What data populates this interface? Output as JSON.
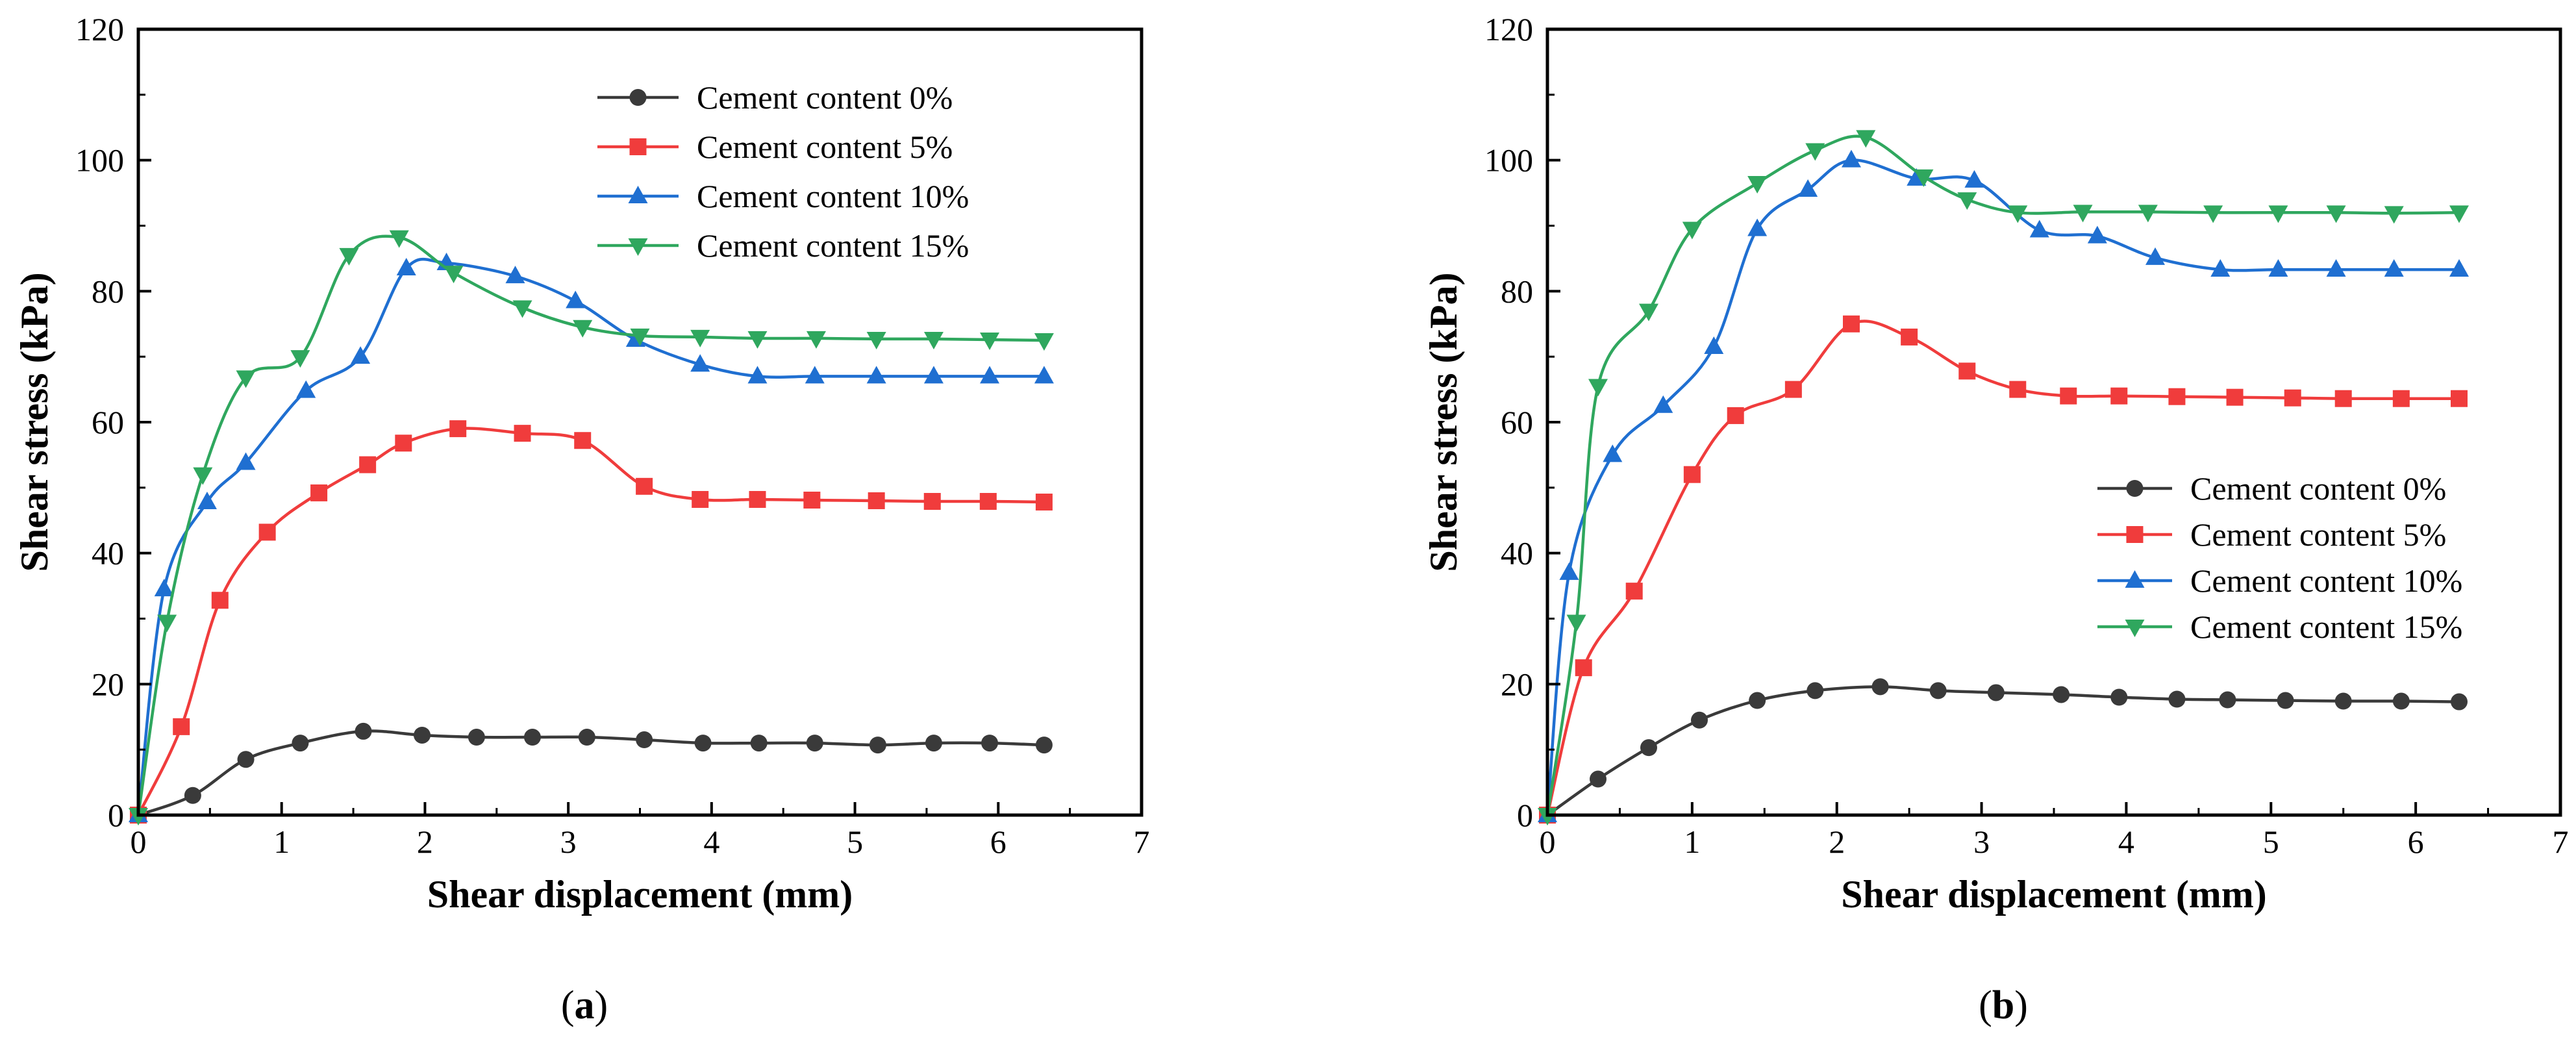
{
  "figure": {
    "panels": [
      "a",
      "b"
    ]
  },
  "chart_data": [
    {
      "type": "line",
      "panel_label": "a",
      "panel_label_open": "(",
      "panel_label_close": ")",
      "xlabel": "Shear displacement (mm)",
      "ylabel": "Shear stress (kPa)",
      "xlim": [
        0,
        7
      ],
      "ylim": [
        0,
        120
      ],
      "xticks": [
        0,
        1,
        2,
        3,
        4,
        5,
        6,
        7
      ],
      "yticks": [
        0,
        20,
        40,
        60,
        80,
        100,
        120
      ],
      "legend_position": "top-right",
      "series": [
        {
          "name": "Cement content 0%",
          "color": "#3a3a3a",
          "marker": "circle",
          "x": [
            0,
            0.38,
            0.75,
            1.13,
            1.57,
            1.98,
            2.36,
            2.75,
            3.13,
            3.53,
            3.94,
            4.33,
            4.72,
            5.16,
            5.55,
            5.94,
            6.32
          ],
          "y": [
            0,
            3,
            8.5,
            11,
            12.8,
            12.2,
            11.9,
            11.9,
            11.9,
            11.5,
            11,
            11,
            11,
            10.7,
            11,
            11,
            10.7
          ]
        },
        {
          "name": "Cement content 5%",
          "color": "#f03c3c",
          "marker": "square",
          "x": [
            0,
            0.3,
            0.57,
            0.9,
            1.26,
            1.6,
            1.85,
            2.23,
            2.68,
            3.1,
            3.53,
            3.92,
            4.32,
            4.7,
            5.15,
            5.54,
            5.93,
            6.32
          ],
          "y": [
            0,
            13.5,
            32.8,
            43.2,
            49.2,
            53.5,
            56.8,
            59,
            58.3,
            57.2,
            50.2,
            48.2,
            48.2,
            48.1,
            48,
            47.9,
            47.9,
            47.8
          ]
        },
        {
          "name": "Cement content 10%",
          "color": "#1f6fd1",
          "marker": "triangle-up",
          "x": [
            0,
            0.18,
            0.48,
            0.75,
            1.17,
            1.55,
            1.87,
            2.15,
            2.63,
            3.05,
            3.47,
            3.92,
            4.32,
            4.72,
            5.15,
            5.55,
            5.94,
            6.32
          ],
          "y": [
            0,
            34.5,
            47.8,
            53.8,
            64.8,
            70,
            83.5,
            84.3,
            82.3,
            78.5,
            72.6,
            68.8,
            67,
            67,
            67,
            67,
            67,
            67
          ]
        },
        {
          "name": "Cement content 15%",
          "color": "#2fa75e",
          "marker": "triangle-down",
          "x": [
            0,
            0.2,
            0.45,
            0.75,
            1.13,
            1.47,
            1.82,
            2.2,
            2.68,
            3.1,
            3.5,
            3.92,
            4.32,
            4.73,
            5.15,
            5.55,
            5.94,
            6.32
          ],
          "y": [
            0,
            29.5,
            52,
            66.8,
            69.9,
            85.5,
            88.2,
            82.8,
            77.5,
            74.5,
            73.2,
            73,
            72.8,
            72.8,
            72.7,
            72.7,
            72.6,
            72.5
          ]
        }
      ]
    },
    {
      "type": "line",
      "panel_label": "b",
      "panel_label_open": "(",
      "panel_label_close": ")",
      "xlabel": "Shear displacement (mm)",
      "ylabel": "Shear stress (kPa)",
      "xlim": [
        0,
        7
      ],
      "ylim": [
        0,
        120
      ],
      "xticks": [
        0,
        1,
        2,
        3,
        4,
        5,
        6,
        7
      ],
      "yticks": [
        0,
        20,
        40,
        60,
        80,
        100,
        120
      ],
      "legend_position": "bottom-right",
      "series": [
        {
          "name": "Cement content 0%",
          "color": "#3a3a3a",
          "marker": "circle",
          "x": [
            0,
            0.35,
            0.7,
            1.05,
            1.45,
            1.85,
            2.3,
            2.7,
            3.1,
            3.55,
            3.95,
            4.35,
            4.7,
            5.1,
            5.5,
            5.9,
            6.3
          ],
          "y": [
            0,
            5.5,
            10.3,
            14.5,
            17.5,
            19,
            19.6,
            19,
            18.7,
            18.4,
            18,
            17.7,
            17.6,
            17.5,
            17.4,
            17.4,
            17.3
          ]
        },
        {
          "name": "Cement content 5%",
          "color": "#f03c3c",
          "marker": "square",
          "x": [
            0,
            0.25,
            0.6,
            1.0,
            1.3,
            1.7,
            2.1,
            2.5,
            2.9,
            3.25,
            3.6,
            3.95,
            4.35,
            4.75,
            5.15,
            5.5,
            5.9,
            6.3
          ],
          "y": [
            0,
            22.5,
            34.2,
            52,
            61,
            65,
            75,
            73,
            67.8,
            65,
            64,
            64,
            63.9,
            63.8,
            63.7,
            63.6,
            63.6,
            63.6
          ]
        },
        {
          "name": "Cement content 10%",
          "color": "#1f6fd1",
          "marker": "triangle-up",
          "x": [
            0,
            0.15,
            0.45,
            0.8,
            1.15,
            1.45,
            1.8,
            2.1,
            2.55,
            2.95,
            3.4,
            3.8,
            4.2,
            4.65,
            5.05,
            5.45,
            5.85,
            6.3
          ],
          "y": [
            0,
            37,
            55,
            62.5,
            71.5,
            89.5,
            95.5,
            100,
            97.2,
            96.9,
            89.3,
            88.4,
            85.1,
            83.3,
            83.3,
            83.3,
            83.3,
            83.3
          ]
        },
        {
          "name": "Cement content 15%",
          "color": "#2fa75e",
          "marker": "triangle-down",
          "x": [
            0,
            0.2,
            0.35,
            0.7,
            1.0,
            1.45,
            1.85,
            2.2,
            2.6,
            2.9,
            3.25,
            3.7,
            4.15,
            4.6,
            5.05,
            5.45,
            5.85,
            6.3
          ],
          "y": [
            0,
            29.5,
            65.5,
            77,
            89.5,
            96.5,
            101.5,
            103.5,
            97.5,
            94,
            92,
            92.1,
            92.1,
            92,
            92,
            92,
            91.9,
            92
          ]
        }
      ]
    }
  ]
}
